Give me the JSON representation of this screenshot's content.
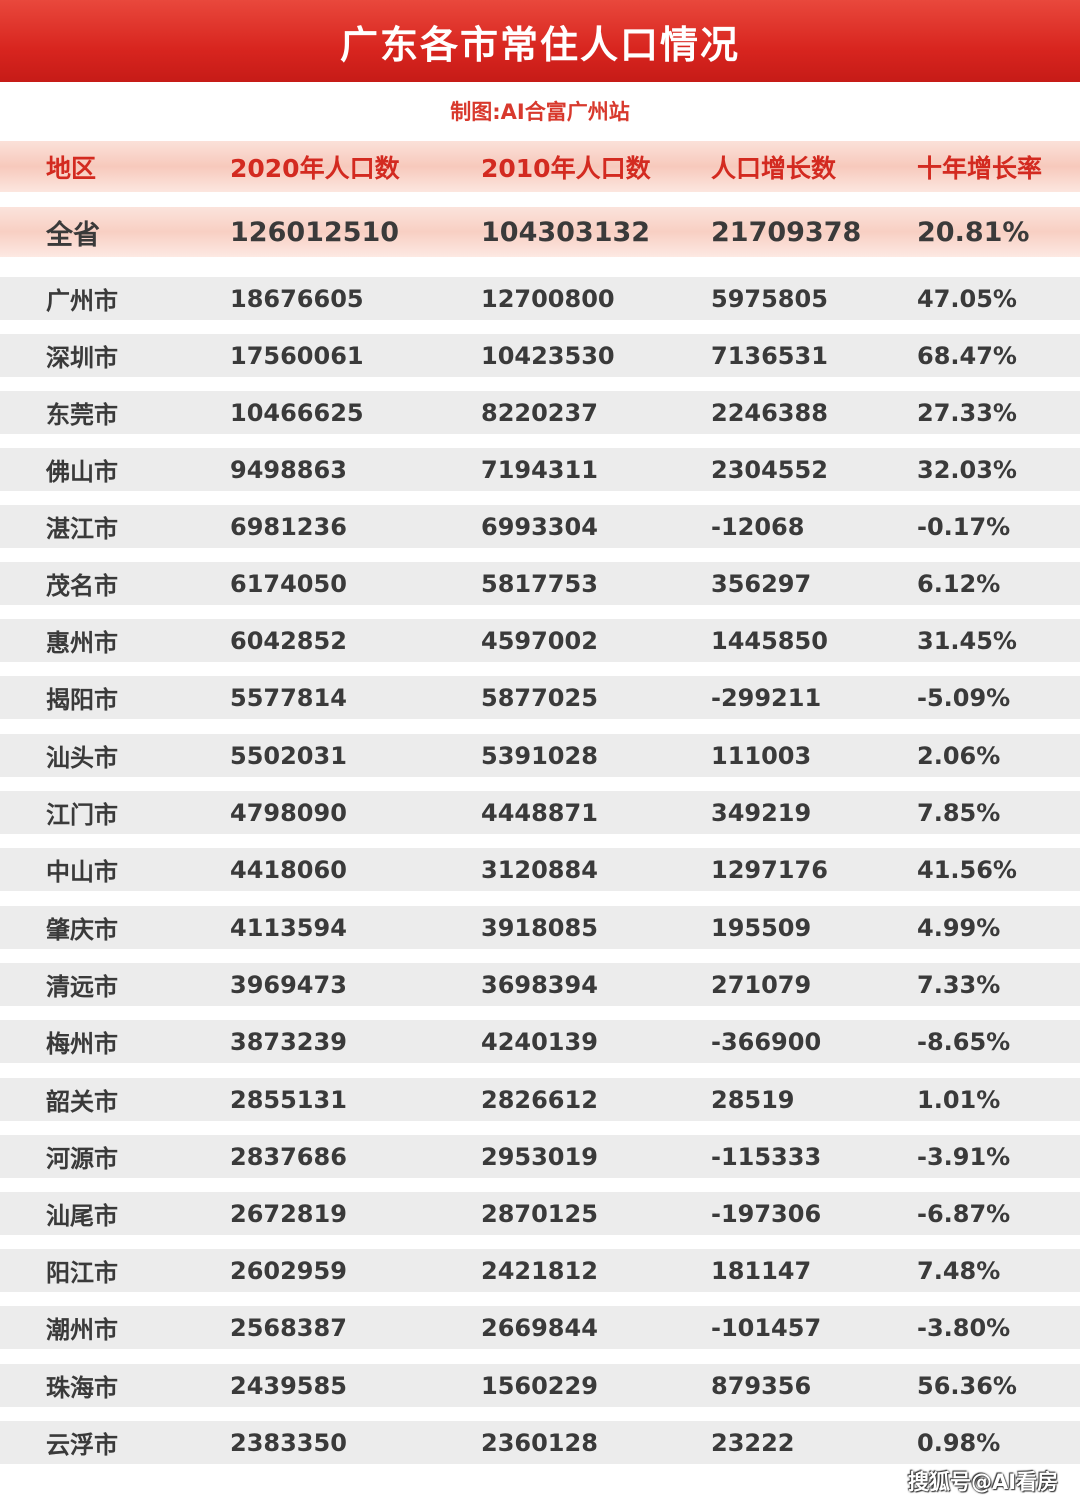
{
  "title": "广东各市常住人口情况",
  "credit": "制图:AI合富广州站",
  "columns": [
    "地区",
    "2020年人口数",
    "2010年人口数",
    "人口增长数",
    "十年增长率"
  ],
  "total": [
    "全省",
    "126012510",
    "104303132",
    "21709378",
    "20.81%"
  ],
  "rows": [
    [
      "广州市",
      "18676605",
      "12700800",
      "5975805",
      "47.05%"
    ],
    [
      "深圳市",
      "17560061",
      "10423530",
      "7136531",
      "68.47%"
    ],
    [
      "东莞市",
      "10466625",
      "8220237",
      "2246388",
      "27.33%"
    ],
    [
      "佛山市",
      "9498863",
      "7194311",
      "2304552",
      "32.03%"
    ],
    [
      "湛江市",
      "6981236",
      "6993304",
      "-12068",
      "-0.17%"
    ],
    [
      "茂名市",
      "6174050",
      "5817753",
      "356297",
      "6.12%"
    ],
    [
      "惠州市",
      "6042852",
      "4597002",
      "1445850",
      "31.45%"
    ],
    [
      "揭阳市",
      "5577814",
      "5877025",
      "-299211",
      "-5.09%"
    ],
    [
      "汕头市",
      "5502031",
      "5391028",
      "111003",
      "2.06%"
    ],
    [
      "江门市",
      "4798090",
      "4448871",
      "349219",
      "7.85%"
    ],
    [
      "中山市",
      "4418060",
      "3120884",
      "1297176",
      "41.56%"
    ],
    [
      "肇庆市",
      "4113594",
      "3918085",
      "195509",
      "4.99%"
    ],
    [
      "清远市",
      "3969473",
      "3698394",
      "271079",
      "7.33%"
    ],
    [
      "梅州市",
      "3873239",
      "4240139",
      "-366900",
      "-8.65%"
    ],
    [
      "韶关市",
      "2855131",
      "2826612",
      "28519",
      "1.01%"
    ],
    [
      "河源市",
      "2837686",
      "2953019",
      "-115333",
      "-3.91%"
    ],
    [
      "汕尾市",
      "2672819",
      "2870125",
      "-197306",
      "-6.87%"
    ],
    [
      "阳江市",
      "2602959",
      "2421812",
      "181147",
      "7.48%"
    ],
    [
      "潮州市",
      "2568387",
      "2669844",
      "-101457",
      "-3.80%"
    ],
    [
      "珠海市",
      "2439585",
      "1560229",
      "879356",
      "56.36%"
    ],
    [
      "云浮市",
      "2383350",
      "2360128",
      "23222",
      "0.98%"
    ]
  ],
  "watermark": "搜狐号@AI看房"
}
